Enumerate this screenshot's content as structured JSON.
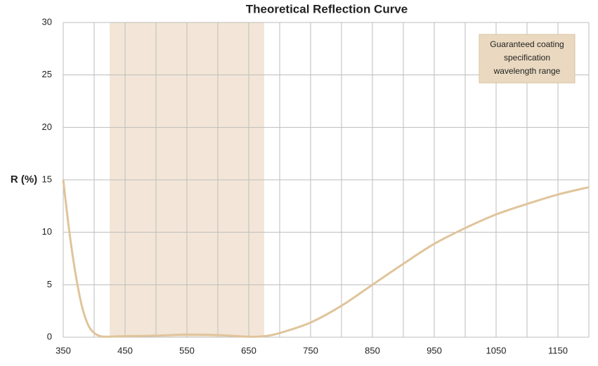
{
  "chart_data": {
    "type": "line",
    "title": "Theoretical Reflection Curve",
    "y_label": "R (%)",
    "x": [
      350,
      360,
      370,
      380,
      390,
      400,
      410,
      420,
      450,
      500,
      550,
      600,
      650,
      675,
      700,
      750,
      800,
      850,
      900,
      950,
      1000,
      1050,
      1100,
      1150,
      1200
    ],
    "series": [
      {
        "color": "#e0c49b",
        "values": [
          15,
          10,
          6,
          3,
          1.2,
          0.4,
          0.1,
          0.05,
          0.1,
          0.15,
          0.25,
          0.2,
          0.05,
          0.1,
          0.4,
          1.4,
          3.0,
          5.0,
          7.0,
          8.9,
          10.4,
          11.7,
          12.7,
          13.6,
          14.3
        ]
      }
    ],
    "xlim": [
      350,
      1200
    ],
    "ylim": [
      0,
      30
    ],
    "xticks": [
      350,
      450,
      550,
      650,
      750,
      850,
      950,
      1050,
      1150
    ],
    "x_minor_ticks": [
      400,
      500,
      600,
      700,
      800,
      900,
      1000,
      1100,
      1200
    ],
    "yticks": [
      0,
      5,
      10,
      15,
      20,
      25,
      30
    ],
    "grid": true,
    "band": {
      "x": [
        425,
        675
      ],
      "color": "#f3e6d8"
    },
    "annotation": {
      "lines": [
        "Guaranteed coating",
        "specification",
        "wavelength range"
      ],
      "color": "#ead9c0"
    }
  }
}
